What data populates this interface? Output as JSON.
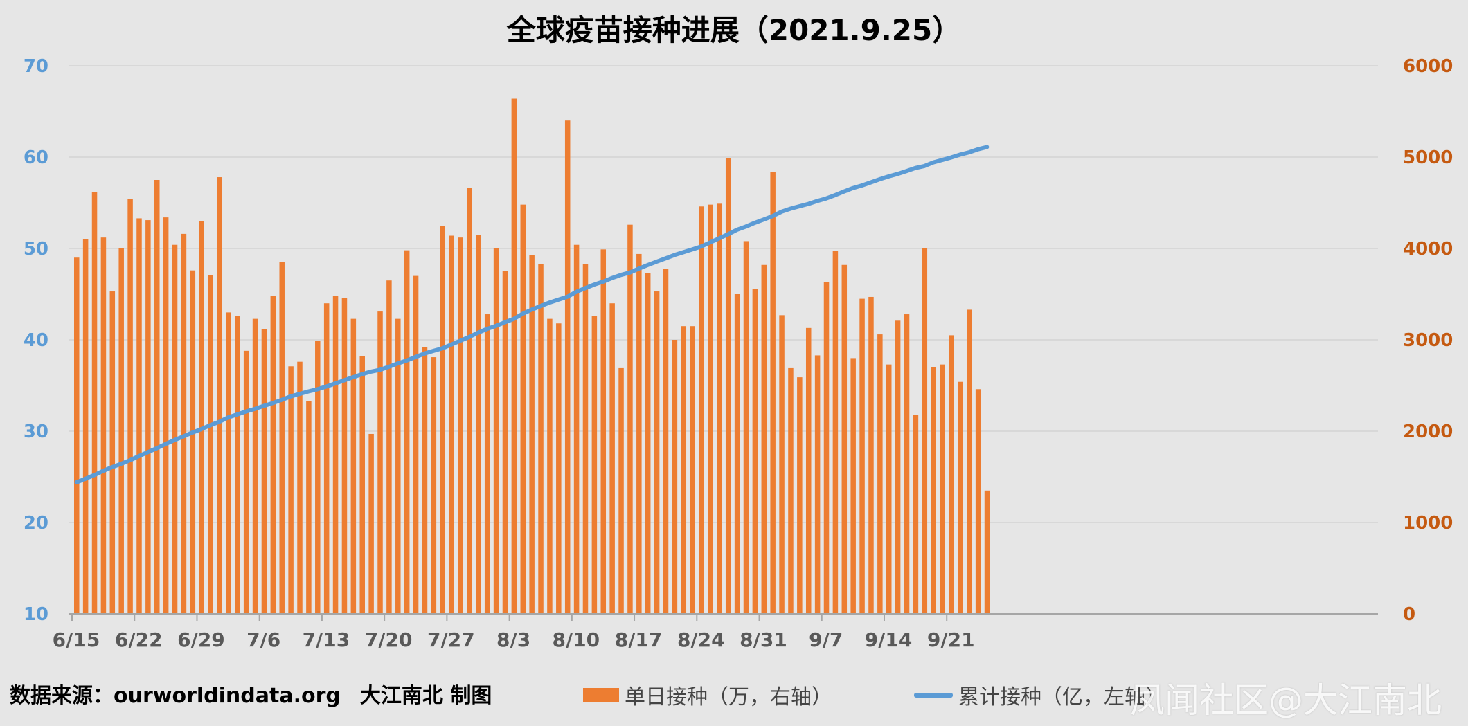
{
  "colors": {
    "bar": "#ed7d31",
    "line": "#5b9bd5",
    "grid": "#d4d4d4",
    "axis": "#a6a6a6",
    "left_tick": "#5b9bd5",
    "right_tick": "#c55a11"
  },
  "footer": {
    "source": "数据来源：ourworldindata.org",
    "maker": "大江南北 制图"
  },
  "watermark": "凤闻社区@大江南北",
  "chart_data": {
    "type": "bar+line",
    "title": "全球疫苗接种进展（2021.9.25）",
    "x_tick_labels": [
      "6/15",
      "6/22",
      "6/29",
      "7/6",
      "7/13",
      "7/20",
      "7/27",
      "8/3",
      "8/10",
      "8/17",
      "8/24",
      "8/31",
      "9/7",
      "9/14",
      "9/21"
    ],
    "left_axis": {
      "ylim": [
        10,
        70
      ],
      "ticks": [
        10,
        20,
        30,
        40,
        50,
        60,
        70
      ]
    },
    "right_axis": {
      "ylim": [
        0,
        6000
      ],
      "ticks": [
        0,
        1000,
        2000,
        3000,
        4000,
        5000,
        6000
      ]
    },
    "series": [
      {
        "name": "单日接种（万，右轴）",
        "type": "bar",
        "axis": "right",
        "start_date": "2021-06-15",
        "values": [
          3900,
          4100,
          4620,
          4120,
          3530,
          4000,
          4540,
          4330,
          4310,
          4750,
          4340,
          4040,
          4160,
          3760,
          4300,
          3710,
          4780,
          3300,
          3260,
          2880,
          3230,
          3120,
          3480,
          3850,
          2710,
          2760,
          2330,
          2990,
          3400,
          3480,
          3460,
          3230,
          2820,
          1970,
          3310,
          3650,
          3230,
          3980,
          3700,
          2920,
          2810,
          4250,
          4140,
          4120,
          4660,
          4150,
          3280,
          4000,
          3750,
          5640,
          4480,
          3930,
          3830,
          3230,
          3180,
          5400,
          4040,
          3830,
          3260,
          3990,
          3400,
          2690,
          4260,
          3940,
          3730,
          3530,
          3780,
          3000,
          3150,
          3150,
          4460,
          4480,
          4490,
          4990,
          3500,
          4080,
          3560,
          3820,
          4840,
          3270,
          2690,
          2590,
          3130,
          2830,
          3630,
          3970,
          3820,
          2800,
          3450,
          3470,
          3060,
          2730,
          3210,
          3280,
          2180,
          4000,
          2700,
          2730,
          3050,
          2540,
          3330,
          2460,
          1350
        ]
      },
      {
        "name": "累计接种（亿，左轴）",
        "type": "line",
        "axis": "left",
        "start_date": "2021-06-15",
        "start": 24.4,
        "end": 61.1
      }
    ],
    "legend_position": "bottom",
    "grid": true
  }
}
